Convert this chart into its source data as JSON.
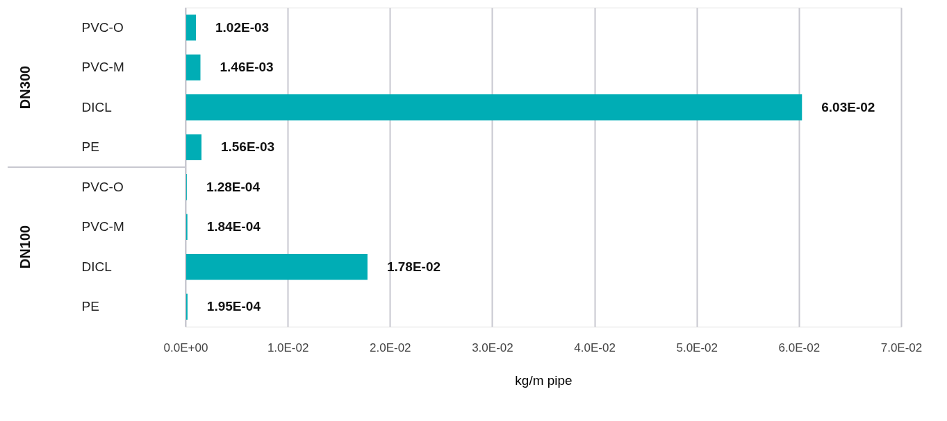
{
  "chart_data": {
    "type": "bar",
    "orientation": "horizontal",
    "categories": [
      "PVC-O",
      "PVC-M",
      "DICL",
      "PE",
      "PVC-O",
      "PVC-M",
      "DICL",
      "PE"
    ],
    "values": [
      0.00102,
      0.00146,
      0.0603,
      0.00156,
      0.000128,
      0.000184,
      0.0178,
      0.000195
    ],
    "value_labels": [
      "1.02E-03",
      "1.46E-03",
      "6.03E-02",
      "1.56E-03",
      "1.28E-04",
      "1.84E-04",
      "1.78E-02",
      "1.95E-04"
    ],
    "color": "#00adb5",
    "xlim": [
      0,
      0.07
    ],
    "xticks": [
      {
        "value": 0,
        "label": "0.0E+00"
      },
      {
        "value": 0.01,
        "label": "1.0E-02"
      },
      {
        "value": 0.02,
        "label": "2.0E-02"
      },
      {
        "value": 0.03,
        "label": "3.0E-02"
      },
      {
        "value": 0.04,
        "label": "4.0E-02"
      },
      {
        "value": 0.05,
        "label": "5.0E-02"
      },
      {
        "value": 0.06,
        "label": "6.0E-02"
      },
      {
        "value": 0.07,
        "label": "7.0E-02"
      }
    ],
    "xlabel": "kg/m pipe",
    "annotations": [
      "DN300",
      "DN100"
    ],
    "grid": "x"
  }
}
